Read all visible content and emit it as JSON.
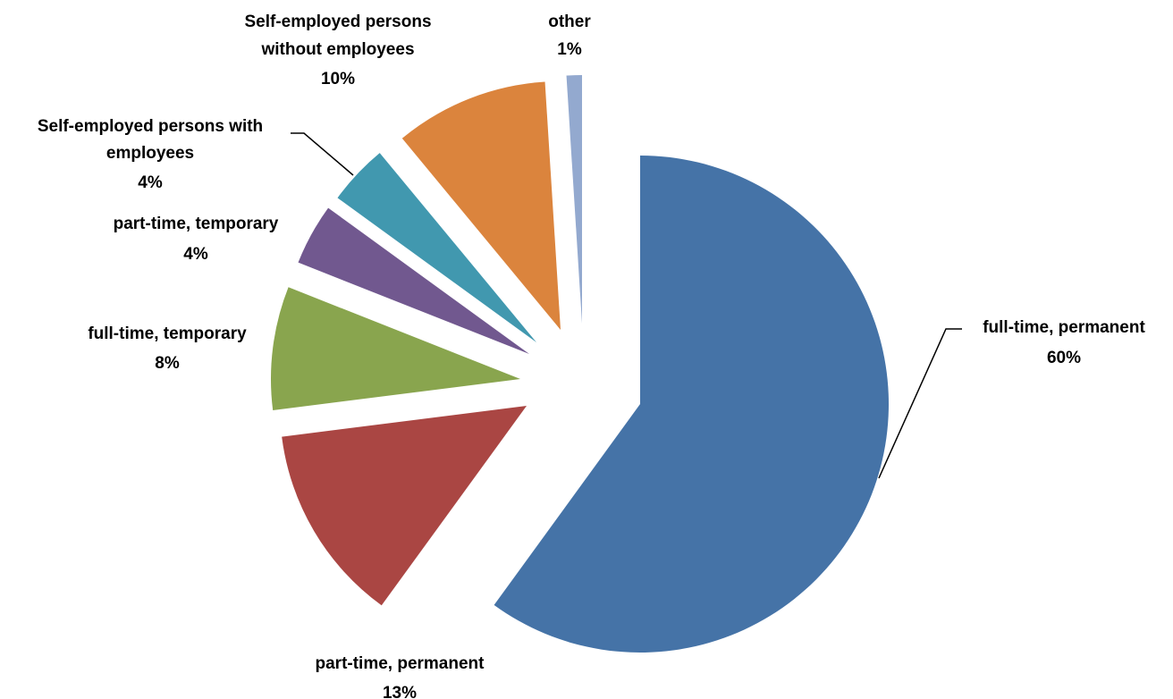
{
  "chart_data": {
    "type": "pie",
    "title": "",
    "slices": [
      {
        "name": "full-time, permanent",
        "value": 60,
        "label": "60%",
        "color": "#4573a7"
      },
      {
        "name": "part-time, permanent",
        "value": 13,
        "label": "13%",
        "color": "#aa4643"
      },
      {
        "name": "full-time, temporary",
        "value": 8,
        "label": "8%",
        "color": "#89a54e"
      },
      {
        "name": "part-time, temporary",
        "value": 4,
        "label": "4%",
        "color": "#71588f"
      },
      {
        "name": "Self-employed persons with employees",
        "value": 4,
        "label": "4%",
        "color": "#4198af"
      },
      {
        "name": "Self-employed persons without employees",
        "value": 10,
        "label": "10%",
        "color": "#db843d"
      },
      {
        "name": "other",
        "value": 1,
        "label": "1%",
        "color": "#93a9cf"
      }
    ]
  }
}
